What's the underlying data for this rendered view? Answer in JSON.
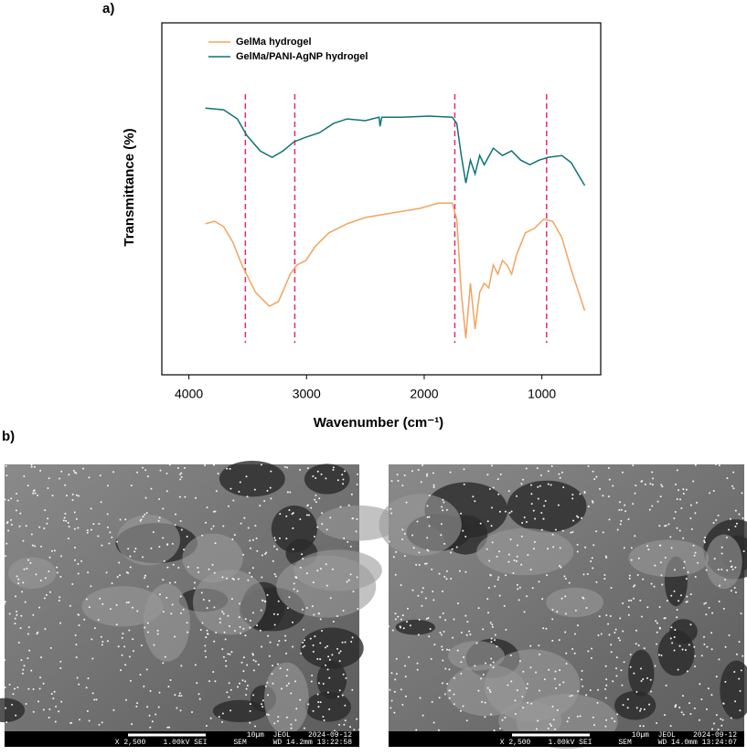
{
  "chart_data": {
    "type": "line",
    "panel_label": "a)",
    "xlabel": "Wavenumber (cm⁻¹)",
    "ylabel": "Transmittance (%)",
    "xlim": [
      4230,
      500
    ],
    "ylim": [
      0,
      100
    ],
    "xticks": [
      4000,
      3000,
      2000,
      1000
    ],
    "vlines": [
      3520,
      3100,
      1740,
      960
    ],
    "vline_color": "#e8286e",
    "legend": "upper left",
    "series": [
      {
        "name": "GelMa hydrogel",
        "color": "#f0a560",
        "x": [
          3860,
          3782,
          3705,
          3627,
          3549,
          3433,
          3316,
          3239,
          3138,
          3083,
          3005,
          2928,
          2811,
          2656,
          2500,
          2267,
          2034,
          1879,
          1762,
          1723,
          1685,
          1646,
          1607,
          1568,
          1529,
          1490,
          1451,
          1413,
          1374,
          1335,
          1296,
          1257,
          1218,
          1141,
          1063,
          985,
          908,
          830,
          752,
          636
        ],
        "values": [
          42.9,
          43.6,
          42.1,
          37.7,
          31.2,
          23.4,
          19.5,
          20.8,
          28.6,
          31.2,
          32.5,
          36.4,
          40.3,
          42.9,
          44.7,
          46.0,
          47.3,
          48.8,
          48.8,
          44.2,
          23.4,
          10.4,
          26.0,
          13.0,
          23.4,
          26.0,
          24.7,
          31.2,
          28.6,
          32.5,
          31.2,
          28.6,
          33.8,
          40.3,
          41.6,
          44.2,
          43.6,
          39.0,
          30.0,
          18.2
        ]
      },
      {
        "name": "GelMa/PANI-AgNP hydrogel",
        "color": "#0e7377",
        "x": [
          3860,
          3705,
          3588,
          3510,
          3394,
          3293,
          3200,
          3106,
          3005,
          2889,
          2772,
          2656,
          2500,
          2384,
          2376,
          2360,
          2190,
          1957,
          1762,
          1723,
          1685,
          1646,
          1607,
          1568,
          1529,
          1490,
          1413,
          1335,
          1257,
          1180,
          1102,
          1024,
          946,
          830,
          752,
          636
        ],
        "values": [
          75.8,
          75.3,
          72.7,
          68.1,
          63.6,
          61.8,
          63.6,
          66.2,
          67.5,
          68.8,
          71.4,
          72.7,
          72.2,
          73.2,
          70.6,
          73.2,
          73.2,
          73.5,
          73.2,
          71.4,
          62.3,
          54.5,
          61.0,
          57.1,
          62.3,
          59.7,
          64.4,
          62.3,
          63.6,
          61.0,
          59.7,
          61.0,
          61.8,
          62.3,
          60.3,
          53.8
        ]
      }
    ]
  },
  "figure_b": {
    "panel_label": "b)",
    "images": [
      {
        "top_line": "10µm  JEOL    2024-09-12",
        "bottom_line": "X 2,500    1.00kV SEI      SEM      WD 14.2mm 13:22:58"
      },
      {
        "top_line": "10µm  JEOL    2024-09-12",
        "bottom_line": "X 2,500    1.00kV SEI      SEM      WD 14.0mm 13:24:07"
      }
    ]
  }
}
